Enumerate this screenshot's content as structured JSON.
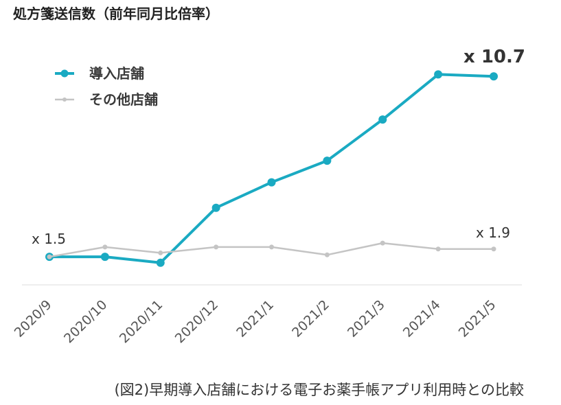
{
  "chart_data": {
    "type": "line",
    "title": "処方箋送信数（前年同月比倍率）",
    "categories": [
      "2020/9",
      "2020/10",
      "2020/11",
      "2020/12",
      "2021/1",
      "2021/2",
      "2021/3",
      "2021/4",
      "2021/5"
    ],
    "series": [
      {
        "name": "導入店舗",
        "color": "#1aaac2",
        "values": [
          1.5,
          1.5,
          1.2,
          4.0,
          5.3,
          6.4,
          8.5,
          10.8,
          10.7
        ]
      },
      {
        "name": "その他店舗",
        "color": "#c4c4c4",
        "values": [
          1.5,
          2.0,
          1.7,
          2.0,
          2.0,
          1.6,
          2.2,
          1.9,
          1.9
        ]
      }
    ],
    "annotations": [
      {
        "text": "x 1.5"
      },
      {
        "text": "x 1.9"
      },
      {
        "text": "x 10.7"
      }
    ],
    "ylim": [
      0,
      14
    ],
    "grid": false,
    "legend": "top-left"
  },
  "caption": "(図2)早期導入店舗における電子お薬手帳アプリ利用時との比較"
}
